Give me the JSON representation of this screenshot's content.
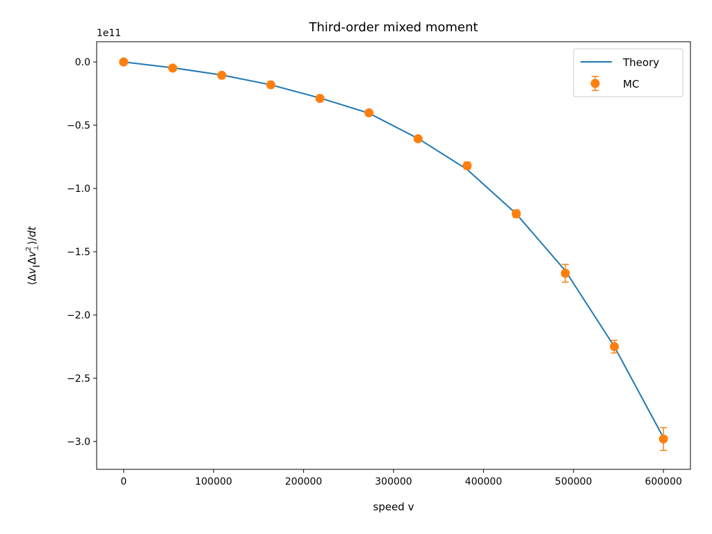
{
  "chart_data": {
    "type": "line",
    "title": "Third-order mixed moment",
    "xlabel": "speed v",
    "ylabel": "⟨Δv∥Δv⊥²⟩/dt",
    "ylabel_parts": {
      "open": "⟨Δ",
      "v1": "v",
      "sub1": "∥",
      "mid": "Δ",
      "v2": "v",
      "sup2": "2",
      "sub2": "⊥",
      "close": "⟩/",
      "dt": "dt"
    },
    "y_offset_label": "1e11",
    "xlim": [
      -30000,
      630000
    ],
    "ylim": [
      -3.22,
      0.16
    ],
    "x_ticks": [
      0,
      100000,
      200000,
      300000,
      400000,
      500000,
      600000
    ],
    "x_tick_labels": [
      "0",
      "100000",
      "200000",
      "300000",
      "400000",
      "500000",
      "600000"
    ],
    "y_ticks": [
      0.0,
      -0.5,
      -1.0,
      -1.5,
      -2.0,
      -2.5,
      -3.0
    ],
    "y_tick_labels": [
      "0.0",
      "−0.5",
      "−1.0",
      "−1.5",
      "−2.0",
      "−2.5",
      "−3.0"
    ],
    "grid": false,
    "legend": "top-right",
    "series": [
      {
        "name": "Theory",
        "kind": "line",
        "color": "#1f77b4",
        "x": [
          0,
          54545,
          109091,
          163636,
          218182,
          272727,
          327273,
          381818,
          436364,
          490909,
          545455,
          600000
        ],
        "y": [
          0.0,
          -0.046,
          -0.103,
          -0.181,
          -0.285,
          -0.405,
          -0.605,
          -0.85,
          -1.2,
          -1.65,
          -2.25,
          -2.97
        ]
      },
      {
        "name": "MC",
        "kind": "errorbar",
        "color": "#ff7f0e",
        "x": [
          0,
          54545,
          109091,
          163636,
          218182,
          272727,
          327273,
          381818,
          436364,
          490909,
          545455,
          600000
        ],
        "y": [
          0.0,
          -0.048,
          -0.105,
          -0.181,
          -0.288,
          -0.402,
          -0.607,
          -0.82,
          -1.2,
          -1.67,
          -2.25,
          -2.98
        ],
        "yerr": [
          0.003,
          0.004,
          0.006,
          0.008,
          0.01,
          0.013,
          0.018,
          0.028,
          0.03,
          0.07,
          0.05,
          0.09
        ]
      }
    ]
  }
}
